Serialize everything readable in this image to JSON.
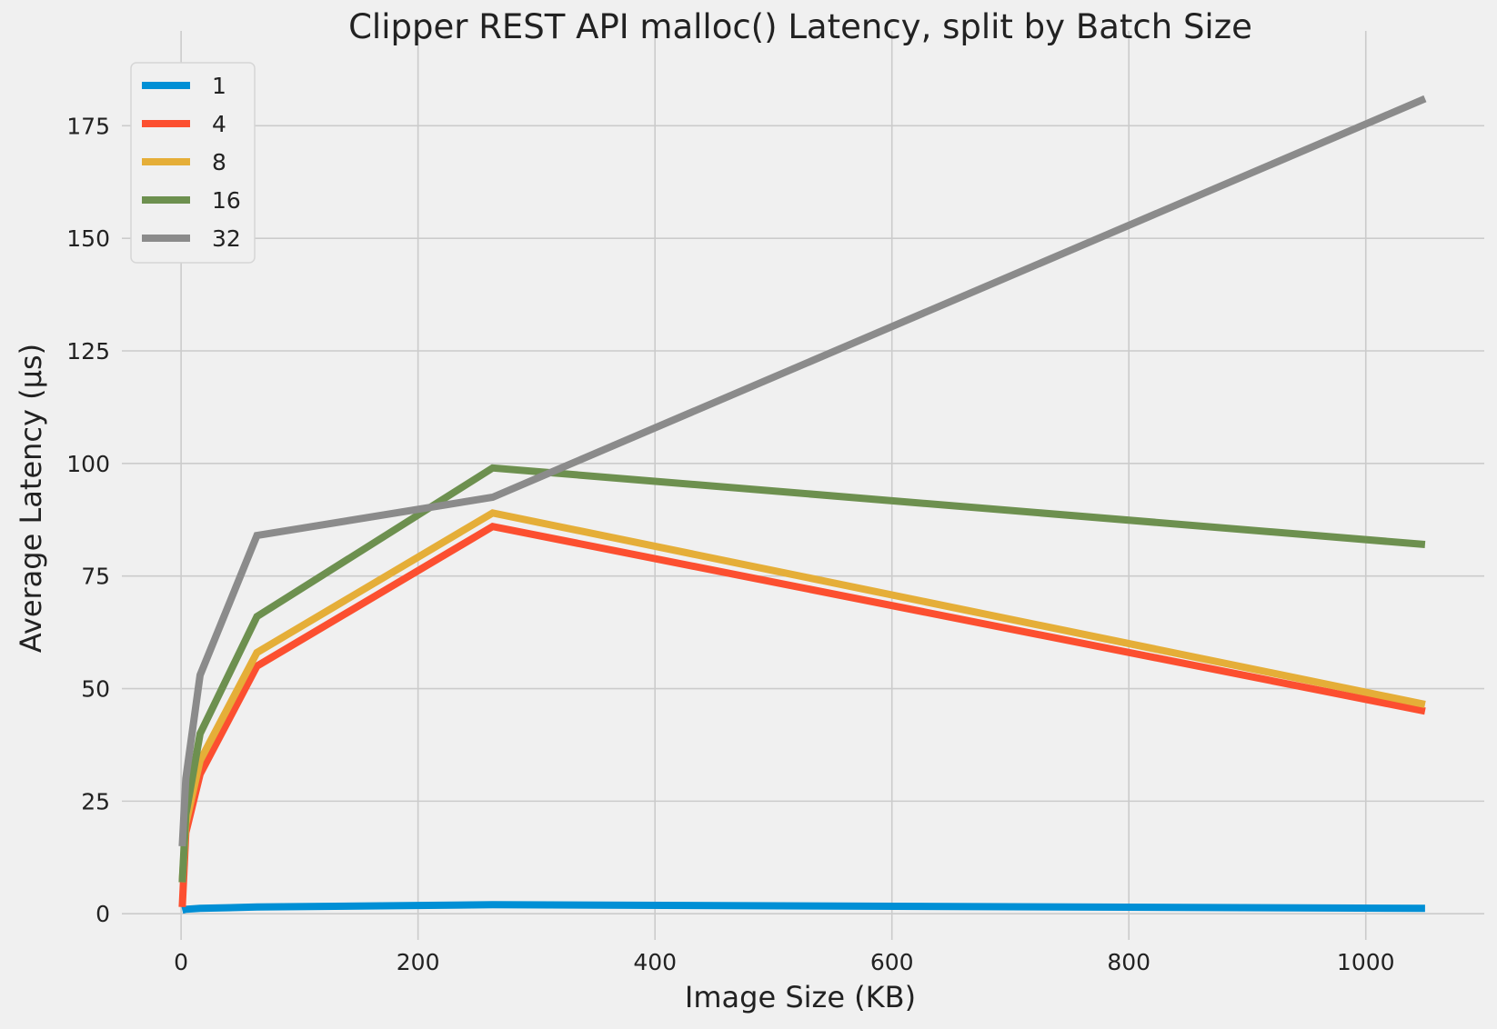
{
  "chart_data": {
    "type": "line",
    "title": "Clipper REST API malloc() Latency, split by Batch Size",
    "xlabel": "Image Size (KB)",
    "ylabel": "Average Latency (μs)",
    "xlim": [
      -50,
      1100
    ],
    "ylim": [
      -5,
      190
    ],
    "xticks": [
      0,
      200,
      400,
      600,
      800,
      1000
    ],
    "yticks": [
      0,
      25,
      50,
      75,
      100,
      125,
      150,
      175
    ],
    "grid": true,
    "legend_position": "top-left",
    "x": [
      1,
      4,
      16,
      64,
      263,
      1050
    ],
    "series": [
      {
        "name": "1",
        "color": "#008fd5",
        "values": [
          0.8,
          1.0,
          1.2,
          1.5,
          2.0,
          1.2
        ]
      },
      {
        "name": "4",
        "color": "#fc4f30",
        "values": [
          1.5,
          18,
          31,
          55,
          86,
          45
        ]
      },
      {
        "name": "8",
        "color": "#e5ae38",
        "values": [
          7,
          20,
          34,
          58,
          89,
          46.5
        ]
      },
      {
        "name": "16",
        "color": "#6d904f",
        "values": [
          7,
          22,
          40,
          66,
          99,
          82
        ]
      },
      {
        "name": "32",
        "color": "#8b8b8b",
        "values": [
          15,
          30,
          53,
          84,
          92.5,
          181
        ]
      }
    ]
  }
}
